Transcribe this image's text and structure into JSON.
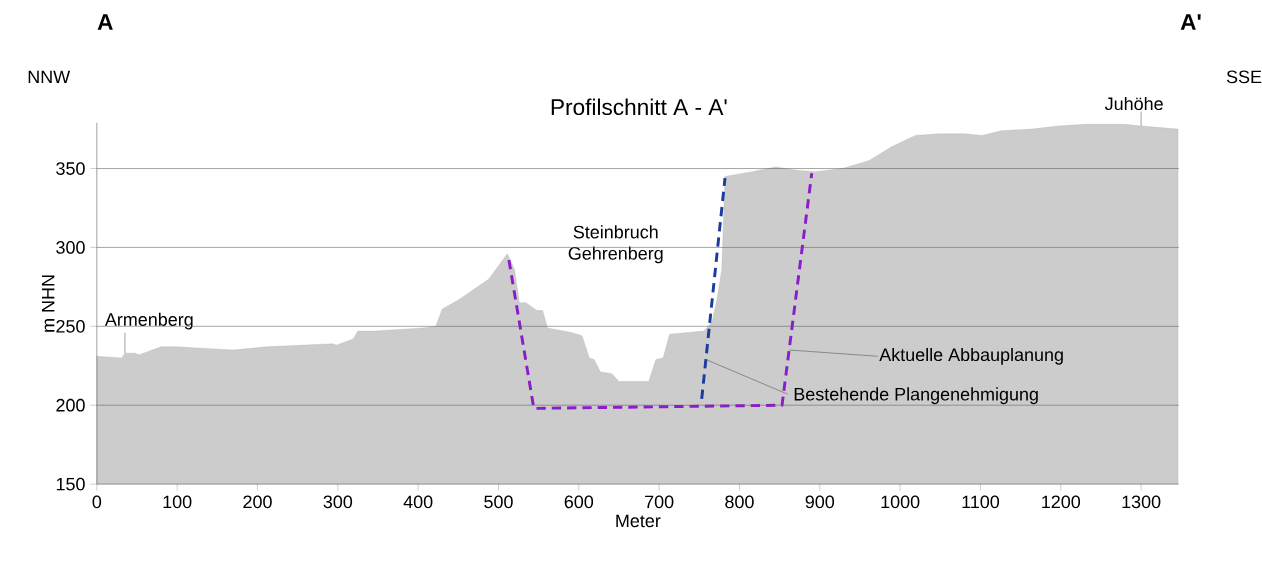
{
  "chart_data": {
    "type": "area",
    "title": "Profilschnitt A - A'",
    "xlabel": "Meter",
    "ylabel": "m NHN",
    "xlim": [
      0,
      1347
    ],
    "ylim": [
      150,
      379
    ],
    "xticks": [
      0,
      100,
      200,
      300,
      400,
      500,
      600,
      700,
      800,
      900,
      1000,
      1100,
      1200,
      1300
    ],
    "yticks": [
      150,
      200,
      250,
      300,
      350
    ],
    "grid": "y",
    "series": [
      {
        "color": "#cccccc",
        "x": [
          0,
          31,
          35,
          47,
          53,
          80,
          99,
          136,
          169,
          211,
          294,
          298,
          319,
          325,
          347,
          406,
          422,
          430,
          451,
          488,
          511,
          520,
          526,
          534,
          548,
          555,
          561,
          592,
          604,
          613,
          619,
          627,
          641,
          650,
          687,
          696,
          705,
          713,
          756,
          766,
          772,
          778,
          782,
          816,
          845,
          869,
          894,
          928,
          961,
          990,
          1019,
          1048,
          1081,
          1102,
          1126,
          1164,
          1197,
          1230,
          1280,
          1300,
          1346
        ],
        "values": [
          231,
          230,
          233,
          233,
          232,
          237,
          237,
          236,
          235,
          237,
          239,
          238,
          242,
          247,
          247,
          249,
          250,
          261,
          267,
          280,
          296,
          286,
          265,
          265,
          260,
          260,
          249,
          246,
          244,
          230,
          229,
          221,
          220,
          215,
          215,
          229,
          230,
          245,
          247,
          253,
          267,
          286,
          345,
          348,
          351,
          349,
          348,
          350,
          355,
          364,
          371,
          372,
          372,
          371,
          374,
          375,
          377,
          378,
          378,
          377,
          375
        ]
      },
      {
        "type": "line",
        "color": "#8a1ccc",
        "line_style": "dashed",
        "x": [
          513,
          544,
          853,
          890
        ],
        "values": [
          292,
          198,
          200,
          347
        ]
      },
      {
        "type": "line",
        "color": "#1a3c9c",
        "line_style": "dashed",
        "x": [
          753,
          782
        ],
        "values": [
          204,
          344
        ]
      }
    ],
    "annotations": [
      "A",
      "A'",
      "NNW",
      "SSE",
      "Steinbruch Gehrenberg",
      {
        "text": "Armenberg",
        "x": 35,
        "y": 233
      },
      {
        "text": "Juhöhe",
        "x": 1300,
        "y": 377
      },
      {
        "text": "Aktuelle Abbauplanung",
        "x": 862,
        "y": 235
      },
      {
        "text": "Bestehende Plangenehmigung",
        "x": 758,
        "y": 229
      }
    ]
  }
}
